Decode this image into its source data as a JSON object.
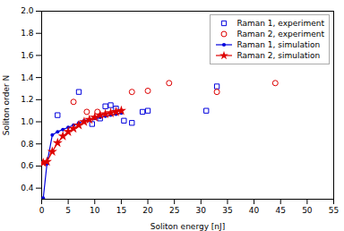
{
  "chart_data": {
    "type": "scatter",
    "xlabel": "Soliton energy [nJ]",
    "ylabel": "Soliton order N",
    "xlim": [
      0,
      55
    ],
    "ylim": [
      0.3,
      2.0
    ],
    "xticks": [
      0,
      5,
      10,
      15,
      20,
      25,
      30,
      35,
      40,
      45,
      50,
      55
    ],
    "yticks": [
      0.4,
      0.6,
      0.8,
      {
        "value": 1.0,
        "label": "1.0"
      },
      1.2,
      1.4,
      1.6,
      1.8,
      {
        "value": 2.0,
        "label": "2.0"
      }
    ],
    "grid": false,
    "legend": "upper right",
    "series": [
      {
        "name": "Raman 1, experiment",
        "type": "scatter",
        "marker": "square",
        "color": "#0000dd",
        "x": [
          3,
          7,
          9.5,
          11,
          12,
          13,
          14,
          15.5,
          17,
          19,
          20,
          31,
          33
        ],
        "values": [
          1.06,
          1.27,
          0.98,
          1.03,
          1.14,
          1.15,
          1.12,
          1.01,
          0.99,
          1.09,
          1.1,
          1.1,
          1.32
        ]
      },
      {
        "name": "Raman 2, experiment",
        "type": "scatter",
        "marker": "circle",
        "color": "#dd0000",
        "x": [
          6,
          8.5,
          10.5,
          17,
          20,
          24,
          33,
          44
        ],
        "values": [
          1.18,
          1.09,
          1.09,
          1.27,
          1.28,
          1.35,
          1.27,
          1.35
        ]
      },
      {
        "name": "Raman 1, simulation",
        "type": "line",
        "marker": "circle",
        "color": "#0000dd",
        "x": [
          0.3,
          1,
          2,
          3,
          4,
          5,
          6,
          7,
          8,
          9,
          10,
          11,
          12,
          13,
          14,
          15
        ],
        "values": [
          0.31,
          0.62,
          0.88,
          0.91,
          0.93,
          0.95,
          0.97,
          0.99,
          1.01,
          1.02,
          1.03,
          1.04,
          1.05,
          1.06,
          1.07,
          1.08
        ]
      },
      {
        "name": "Raman 2, simulation",
        "type": "line",
        "marker": "star",
        "color": "#dd0000",
        "x": [
          0.3,
          1,
          2,
          3,
          4,
          5,
          6,
          7,
          8,
          9,
          10,
          11,
          12,
          13,
          14,
          15
        ],
        "values": [
          0.63,
          0.64,
          0.73,
          0.81,
          0.87,
          0.91,
          0.94,
          0.97,
          1.0,
          1.02,
          1.04,
          1.06,
          1.07,
          1.08,
          1.09,
          1.1
        ]
      }
    ]
  }
}
